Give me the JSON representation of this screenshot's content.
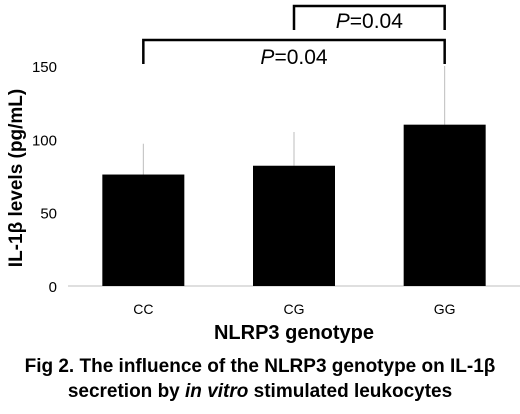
{
  "chart_data": {
    "type": "bar",
    "categories": [
      "CC",
      "CG",
      "GG"
    ],
    "values": [
      76,
      82,
      110
    ],
    "error_upper": [
      97,
      105,
      150
    ],
    "ylim": [
      0,
      150
    ],
    "yticks": [
      0,
      50,
      100,
      150
    ],
    "ylabel": "IL-1β levels (pg/mL)",
    "xlabel": "NLRP3 genotype",
    "bar_color": "#000000",
    "error_color": "#bdbdbd",
    "grid": false,
    "annotations": [
      {
        "from": "CC",
        "to": "GG",
        "prefix": "P",
        "value": "=0.04"
      },
      {
        "from": "CG",
        "to": "GG",
        "prefix": "P",
        "value": "=0.04"
      }
    ]
  },
  "caption": {
    "line1": "Fig 2. The influence of the NLRP3 genotype on IL-1β",
    "line2_pre": "secretion by ",
    "line2_italic": "in vitro",
    "line2_post": " stimulated leukocytes"
  }
}
